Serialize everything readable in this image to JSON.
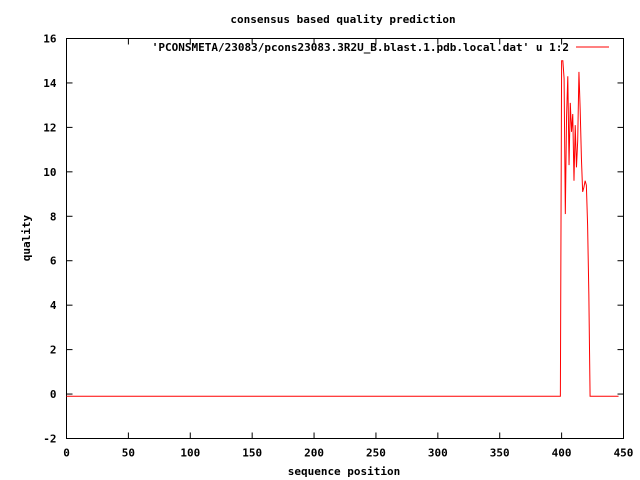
{
  "chart_data": {
    "type": "line",
    "title": "consensus based quality prediction",
    "xlabel": "sequence position",
    "ylabel": "quality",
    "xlim": [
      0,
      450
    ],
    "ylim": [
      -2,
      16
    ],
    "xticks": [
      0,
      50,
      100,
      150,
      200,
      250,
      300,
      350,
      400,
      450
    ],
    "yticks": [
      -2,
      0,
      2,
      4,
      6,
      8,
      10,
      12,
      14,
      16
    ],
    "grid": false,
    "legend_position": "top-right",
    "series": [
      {
        "name": "'PCONSMETA/23083/pcons23083.3R2U_B.blast.1.pdb.local.dat' u 1:2",
        "color": "#ff0000",
        "x": [
          0,
          399,
          399.5,
          400,
          401,
          402,
          403,
          404,
          405,
          406,
          407,
          408,
          409,
          410,
          411,
          412,
          413,
          414,
          415,
          416,
          417,
          418,
          419,
          420,
          421,
          422,
          423,
          424,
          425,
          426,
          427,
          428,
          429,
          430,
          431,
          432,
          433,
          434,
          435,
          436,
          437,
          438,
          439,
          440,
          441,
          442,
          443,
          444,
          445,
          446
        ],
        "y": [
          -0.1,
          -0.1,
          7.5,
          15,
          15,
          14.2,
          8.1,
          12.5,
          14.3,
          10.3,
          13.1,
          11.8,
          12.6,
          9.6,
          12.1,
          10.2,
          11.4,
          14.5,
          12.8,
          10.6,
          9.1,
          9.3,
          9.6,
          9.4,
          7.6,
          4.5,
          -0.1,
          -0.1,
          -0.1,
          -0.1,
          -0.1,
          -0.1,
          -0.1,
          -0.1,
          -0.1,
          -0.1,
          -0.1,
          -0.1,
          -0.1,
          -0.1,
          -0.1,
          -0.1,
          -0.1,
          -0.1,
          -0.1,
          -0.1,
          -0.1,
          -0.1,
          -0.1,
          -0.1
        ]
      }
    ]
  }
}
